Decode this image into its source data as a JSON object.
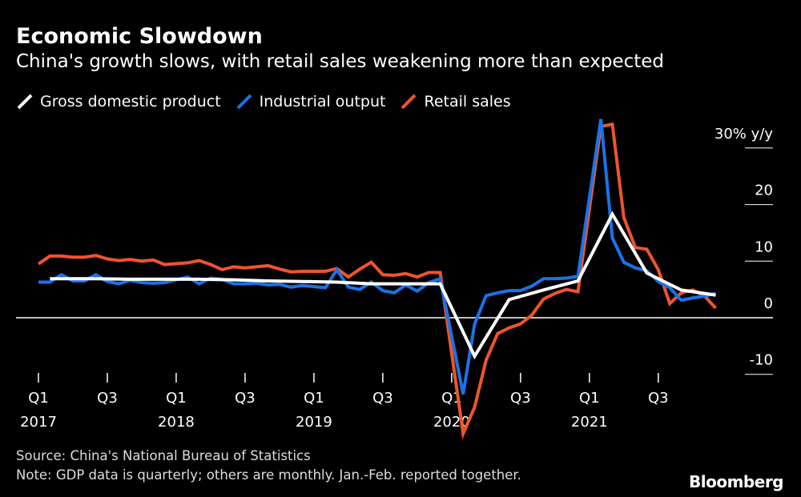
{
  "title": "Economic Slowdown",
  "subtitle": "China's growth slows, with retail sales weakening more than expected",
  "source": "Source: China's National Bureau of Statistics",
  "note": "Note: GDP data is quarterly; others are monthly. Jan.-Feb. reported together.",
  "logo": "Bloomberg",
  "chart_data": {
    "type": "line",
    "title": "Economic Slowdown",
    "ylabel": "% y/y",
    "ylim": [
      -15,
      32
    ],
    "yticks": [
      {
        "v": 30,
        "label": "30% y/y"
      },
      {
        "v": 20,
        "label": "20"
      },
      {
        "v": 10,
        "label": "10"
      },
      {
        "v": 0,
        "label": "0"
      },
      {
        "v": -10,
        "label": "-10"
      }
    ],
    "xticks": [
      {
        "month": "2017-01",
        "label": "Q1",
        "year": "2017"
      },
      {
        "month": "2017-07",
        "label": "Q3",
        "year": ""
      },
      {
        "month": "2018-01",
        "label": "Q1",
        "year": "2018"
      },
      {
        "month": "2018-07",
        "label": "Q3",
        "year": ""
      },
      {
        "month": "2019-01",
        "label": "Q1",
        "year": "2019"
      },
      {
        "month": "2019-07",
        "label": "Q3",
        "year": ""
      },
      {
        "month": "2020-01",
        "label": "Q1",
        "year": "2020"
      },
      {
        "month": "2020-07",
        "label": "Q3",
        "year": ""
      },
      {
        "month": "2021-01",
        "label": "Q1",
        "year": "2021"
      },
      {
        "month": "2021-07",
        "label": "Q3",
        "year": ""
      }
    ],
    "start_month": "2017-01",
    "legend_position": "top-left",
    "series": [
      {
        "name": "Gross domestic product",
        "color": "#ffffff",
        "frequency": "quarterly",
        "points": [
          [
            "2017-02",
            6.9
          ],
          [
            "2017-06",
            6.9
          ],
          [
            "2017-09",
            6.8
          ],
          [
            "2017-12",
            6.8
          ],
          [
            "2018-03",
            6.8
          ],
          [
            "2018-06",
            6.7
          ],
          [
            "2018-09",
            6.5
          ],
          [
            "2018-12",
            6.4
          ],
          [
            "2019-03",
            6.3
          ],
          [
            "2019-06",
            6.0
          ],
          [
            "2019-09",
            6.0
          ],
          [
            "2019-12",
            6.0
          ],
          [
            "2020-03",
            -6.8
          ],
          [
            "2020-06",
            3.2
          ],
          [
            "2020-09",
            4.9
          ],
          [
            "2020-12",
            6.5
          ],
          [
            "2021-03",
            18.3
          ],
          [
            "2021-06",
            7.9
          ],
          [
            "2021-09",
            4.9
          ],
          [
            "2021-12",
            4.0
          ]
        ]
      },
      {
        "name": "Industrial output",
        "color": "#1a73e8",
        "frequency": "monthly",
        "values": [
          6.3,
          6.3,
          7.6,
          6.5,
          6.5,
          7.6,
          6.4,
          6.0,
          6.6,
          6.2,
          6.1,
          6.2,
          null,
          7.2,
          6.0,
          7.0,
          6.8,
          6.0,
          6.0,
          6.1,
          5.8,
          5.9,
          5.4,
          5.7,
          null,
          5.3,
          8.5,
          5.4,
          5.0,
          6.3,
          4.8,
          4.4,
          5.8,
          4.7,
          6.2,
          6.9,
          null,
          -13.5,
          -1.1,
          3.9,
          4.4,
          4.8,
          4.8,
          5.6,
          6.9,
          6.9,
          7.0,
          7.3,
          null,
          35.1,
          14.1,
          9.8,
          8.8,
          8.3,
          6.4,
          5.3,
          3.1,
          3.5,
          3.8,
          4.3
        ]
      },
      {
        "name": "Retail sales",
        "color": "#f0542d",
        "frequency": "monthly",
        "values": [
          9.5,
          10.9,
          10.9,
          10.7,
          10.7,
          11.0,
          10.4,
          10.1,
          10.3,
          10.0,
          10.2,
          9.4,
          null,
          9.7,
          10.1,
          9.4,
          8.5,
          9.0,
          8.8,
          9.0,
          9.2,
          8.6,
          8.1,
          8.2,
          null,
          8.2,
          8.7,
          7.2,
          8.6,
          9.8,
          7.6,
          7.5,
          7.8,
          7.2,
          8.0,
          8.0,
          null,
          -20.5,
          -15.8,
          -7.5,
          -2.8,
          -1.8,
          -1.1,
          0.5,
          3.3,
          4.3,
          5.0,
          4.6,
          null,
          33.8,
          34.2,
          17.7,
          12.4,
          12.1,
          8.5,
          2.5,
          4.4,
          4.9,
          3.9,
          1.7
        ]
      }
    ]
  }
}
